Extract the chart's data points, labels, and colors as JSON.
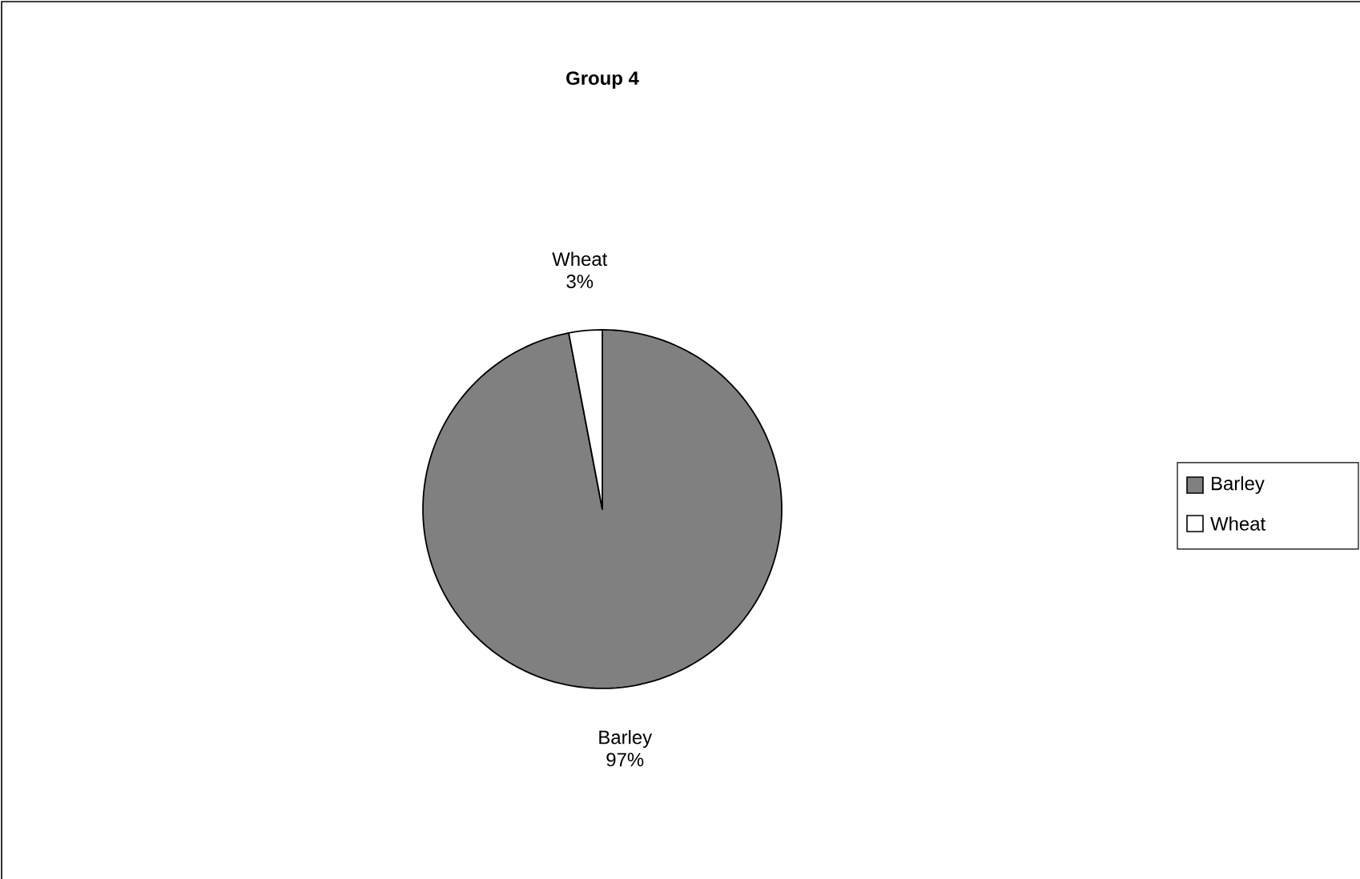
{
  "chart_data": {
    "type": "pie",
    "title": "Group 4",
    "categories": [
      "Barley",
      "Wheat"
    ],
    "values": [
      97,
      3
    ],
    "colors": [
      "#808080",
      "#ffffff"
    ],
    "value_labels": [
      "97%",
      "3%"
    ],
    "legend": "right"
  }
}
